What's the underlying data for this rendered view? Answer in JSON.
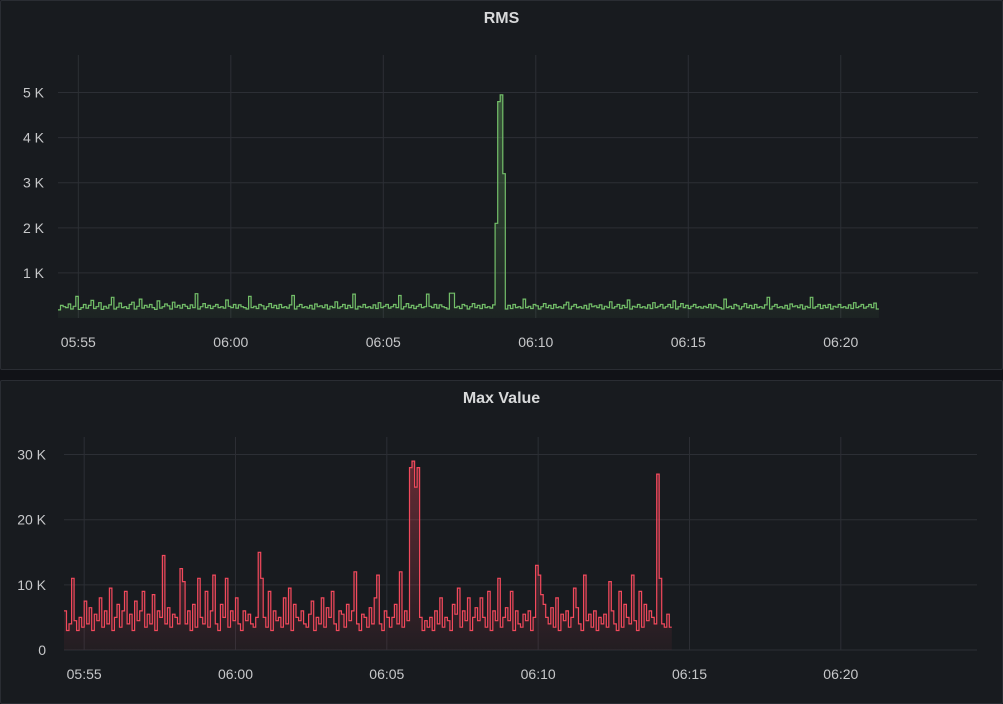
{
  "panels": [
    {
      "title": "RMS",
      "color": "#73bf69",
      "chart_data": {
        "type": "area",
        "title": "RMS",
        "x_ticks": [
          "05:55",
          "06:00",
          "06:05",
          "06:10",
          "06:15",
          "06:20"
        ],
        "x_range": [
          "05:54:20",
          "06:24:30"
        ],
        "ylim": [
          0,
          5500
        ],
        "y_ticks": [
          {
            "v": 1000,
            "label": "1 K"
          },
          {
            "v": 2000,
            "label": "2 K"
          },
          {
            "v": 3000,
            "label": "3 K"
          },
          {
            "v": 4000,
            "label": "4 K"
          },
          {
            "v": 5000,
            "label": "5 K"
          }
        ],
        "grid": true,
        "series": [
          {
            "x_start": "05:54:20",
            "step_seconds": 5,
            "values": [
              180,
              280,
              250,
              230,
              310,
              200,
              260,
              480,
              190,
              230,
              300,
              220,
              280,
              390,
              210,
              250,
              340,
              190,
              260,
              220,
              290,
              460,
              200,
              240,
              330,
              230,
              250,
              210,
              300,
              350,
              200,
              260,
              420,
              220,
              280,
              240,
              300,
              230,
              190,
              380,
              220,
              250,
              310,
              270,
              200,
              350,
              240,
              280,
              220,
              300,
              260,
              210,
              290,
              230,
              540,
              200,
              250,
              320,
              230,
              280,
              210,
              260,
              300,
              230,
              250,
              220,
              400,
              260,
              230,
              300,
              220,
              290,
              250,
              230,
              200,
              480,
              230,
              260,
              210,
              300,
              270,
              200,
              250,
              320,
              230,
              280,
              210,
              300,
              230,
              250,
              220,
              290,
              500,
              200,
              260,
              300,
              230,
              250,
              220,
              280,
              200,
              310,
              250,
              270,
              230,
              290,
              200,
              260,
              230,
              360,
              220,
              250,
              300,
              210,
              280,
              230,
              530,
              200,
              260,
              240,
              300,
              230,
              250,
              220,
              290,
              210,
              340,
              230,
              260,
              300,
              220,
              250,
              300,
              230,
              500,
              200,
              250,
              320,
              230,
              280,
              210,
              260,
              300,
              230,
              250,
              530,
              260,
              230,
              300,
              220,
              290,
              250,
              230,
              200,
              550,
              550,
              230,
              260,
              210,
              300,
              270,
              200,
              250,
              320,
              230,
              280,
              210,
              300,
              230,
              250,
              220,
              290,
              2100,
              4800,
              4950,
              3200,
              200,
              280,
              210,
              300,
              230,
              250,
              220,
              420,
              230,
              260,
              210,
              300,
              270,
              200,
              250,
              320,
              230,
              280,
              210,
              300,
              230,
              250,
              220,
              290,
              350,
              200,
              260,
              300,
              230,
              250,
              220,
              280,
              200,
              310,
              250,
              270,
              230,
              290,
              200,
              260,
              230,
              360,
              220,
              250,
              300,
              210,
              280,
              230,
              400,
              200,
              260,
              240,
              300,
              230,
              250,
              220,
              290,
              210,
              340,
              230,
              260,
              300,
              220,
              250,
              300,
              230,
              380,
              200,
              250,
              320,
              230,
              280,
              210,
              260,
              300,
              230,
              250,
              220,
              260,
              230,
              300,
              220,
              290,
              250,
              230,
              200,
              420,
              230,
              260,
              210,
              300,
              270,
              200,
              250,
              320,
              230,
              280,
              210,
              300,
              230,
              250,
              220,
              290,
              460,
              200,
              260,
              300,
              230,
              250,
              220,
              280,
              200,
              310,
              250,
              270,
              230,
              290,
              200,
              260,
              230,
              460,
              220,
              250,
              300,
              210,
              280,
              230,
              300,
              200,
              260,
              240,
              300,
              230,
              250,
              220,
              290,
              210,
              340,
              230,
              260,
              300,
              220,
              250,
              300,
              230,
              330,
              200
            ]
          }
        ]
      }
    },
    {
      "title": "Max Value",
      "color": "#f2495c",
      "chart_data": {
        "type": "area",
        "title": "Max Value",
        "x_ticks": [
          "05:55",
          "06:00",
          "06:05",
          "06:10",
          "06:15",
          "06:20"
        ],
        "x_range": [
          "05:54:20",
          "06:24:30"
        ],
        "ylim": [
          0,
          33000
        ],
        "y_ticks": [
          {
            "v": 0,
            "label": "0"
          },
          {
            "v": 10000,
            "label": "10 K"
          },
          {
            "v": 20000,
            "label": "20 K"
          },
          {
            "v": 30000,
            "label": "30 K"
          }
        ],
        "grid": true,
        "series": [
          {
            "x_start": "05:54:20",
            "step_seconds": 5,
            "values": [
              6000,
              3000,
              4000,
              11000,
              4500,
              3000,
              5000,
              3500,
              7500,
              4000,
              6500,
              3000,
              5500,
              4500,
              8000,
              3500,
              6000,
              4000,
              9500,
              3000,
              5000,
              7000,
              3500,
              6000,
              9000,
              4000,
              5500,
              3000,
              7500,
              4500,
              6000,
              9000,
              3500,
              5500,
              4000,
              8500,
              3000,
              6000,
              5000,
              14500,
              4000,
              6500,
              3500,
              5500,
              5000,
              4000,
              12500,
              10500,
              4000,
              6000,
              3000,
              7000,
              3500,
              11000,
              5000,
              4000,
              9000,
              3500,
              6000,
              11500,
              4000,
              3000,
              7000,
              5000,
              11000,
              3500,
              6000,
              4500,
              8000,
              4000,
              3000,
              6000,
              4500,
              5500,
              4000,
              3500,
              5000,
              15000,
              11000,
              5000,
              3500,
              9000,
              3000,
              6000,
              4500,
              5000,
              3500,
              8000,
              4000,
              9500,
              3000,
              7000,
              5000,
              4500,
              6000,
              4000,
              3500,
              5500,
              7500,
              3000,
              5000,
              4000,
              8000,
              3500,
              6500,
              5000,
              9000,
              4000,
              3000,
              6000,
              5500,
              3500,
              7000,
              4500,
              6000,
              12000,
              4000,
              3000,
              5500,
              5000,
              3500,
              6500,
              4000,
              8000,
              11500,
              4000,
              3000,
              6000,
              5000,
              3500,
              5000,
              7000,
              4000,
              12000,
              3500,
              6000,
              4500,
              28000,
              29000,
              25000,
              28000,
              5000,
              3000,
              4500,
              3500,
              5000,
              3000,
              6000,
              4000,
              8000,
              3500,
              5000,
              4500,
              3000,
              7000,
              5500,
              9500,
              3500,
              6000,
              4500,
              8000,
              3000,
              5000,
              6500,
              4500,
              8000,
              5000,
              3500,
              9000,
              3000,
              6000,
              4500,
              11000,
              3500,
              5000,
              6500,
              4500,
              9000,
              3000,
              6000,
              4000,
              3500,
              5500,
              4500,
              6000,
              3000,
              5000,
              13000,
              11500,
              8500,
              7000,
              5000,
              4000,
              6500,
              3500,
              8000,
              3000,
              5500,
              4500,
              6000,
              3500,
              5000,
              9500,
              6500,
              4000,
              3000,
              11500,
              4500,
              5500,
              3500,
              6000,
              3000,
              5000,
              4000,
              5500,
              3500,
              10500,
              6000,
              4000,
              3000,
              9000,
              3500,
              7000,
              5000,
              4000,
              11500,
              4500,
              3000,
              9000,
              3500,
              7000,
              4500,
              6000,
              5000,
              4000,
              27000,
              11000,
              4000,
              3500,
              5500,
              3500
            ]
          }
        ]
      }
    }
  ]
}
